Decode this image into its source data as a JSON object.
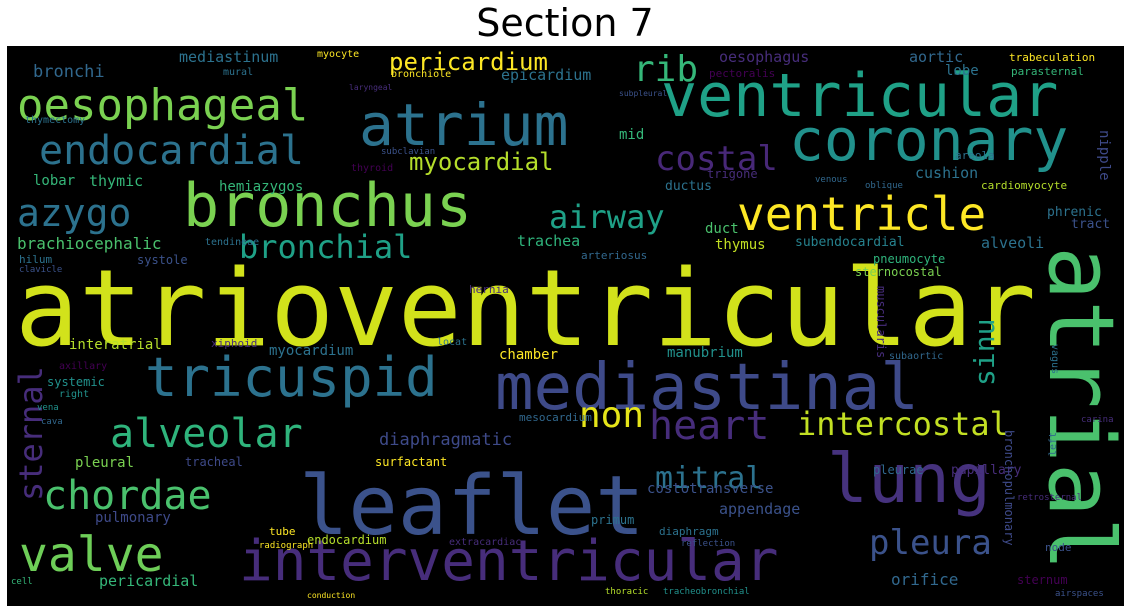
{
  "title": "Section 7",
  "colors": {
    "yellow": "#d2e21b",
    "lime": "#7ad151",
    "green": "#4ac16d",
    "teal": "#1fa187",
    "cyan": "#21918c",
    "blue": "#2c728e",
    "indigo": "#3b528b",
    "purple": "#472d7b",
    "violet": "#440154"
  },
  "words": [
    "atrioventricular",
    "atrial",
    "leaflet",
    "mediastinal",
    "interventricular",
    "ventricular",
    "coronary",
    "bronchus",
    "atrium",
    "ventricle",
    "tricuspid",
    "lung",
    "oesophageal",
    "valve",
    "endocardial",
    "chordae",
    "alveolar",
    "bronchial",
    "azygo",
    "heart",
    "pleura",
    "airway",
    "intercostal",
    "costal",
    "non",
    "sternal",
    "mitral",
    "myocardial",
    "sinu",
    "pericardium",
    "rib",
    "diaphragmatic",
    "bronchi",
    "mediastinum",
    "epicardium",
    "oesophagus",
    "aortic",
    "thymic",
    "hemiazygos",
    "cushion",
    "brachiocephalic",
    "trachea",
    "thymus",
    "subendocardial",
    "alveoli",
    "interatrial",
    "myocardium",
    "chamber",
    "manubrium",
    "pleural",
    "tracheal",
    "surfactant",
    "pulmonary",
    "appendage",
    "costotransverse",
    "orifice",
    "pericardial",
    "endocardium",
    "sternum",
    "lobar",
    "lobe",
    "nipple",
    "cardiomyocyte",
    "phrenic",
    "parasternal",
    "trabeculation",
    "pneumocyte",
    "sternocostal",
    "papillary",
    "pleurae",
    "systemic",
    "primum",
    "hernia",
    "diaphragm",
    "extracardiac",
    "node",
    "tube",
    "left",
    "right",
    "mesocardium",
    "subaortic",
    "xiphoid",
    "locat",
    "systole",
    "hilum",
    "myocyte",
    "mural",
    "bronchiole",
    "laryngeal",
    "pectoralis",
    "thymectomy",
    "subclavian",
    "ductus",
    "trigone",
    "areola",
    "mid",
    "duct",
    "tract",
    "arteriosus",
    "muscularis",
    "tendineae",
    "vena",
    "cava",
    "radiograph",
    "clavicle",
    "carina",
    "retrosternal",
    "tracheobronchial",
    "conduction",
    "cell",
    "airspaces",
    "reflection",
    "thoracic",
    "vagus",
    "subpleural",
    "bronchopulmonary",
    "oblique",
    "venous",
    "axillary",
    "thyroid"
  ]
}
